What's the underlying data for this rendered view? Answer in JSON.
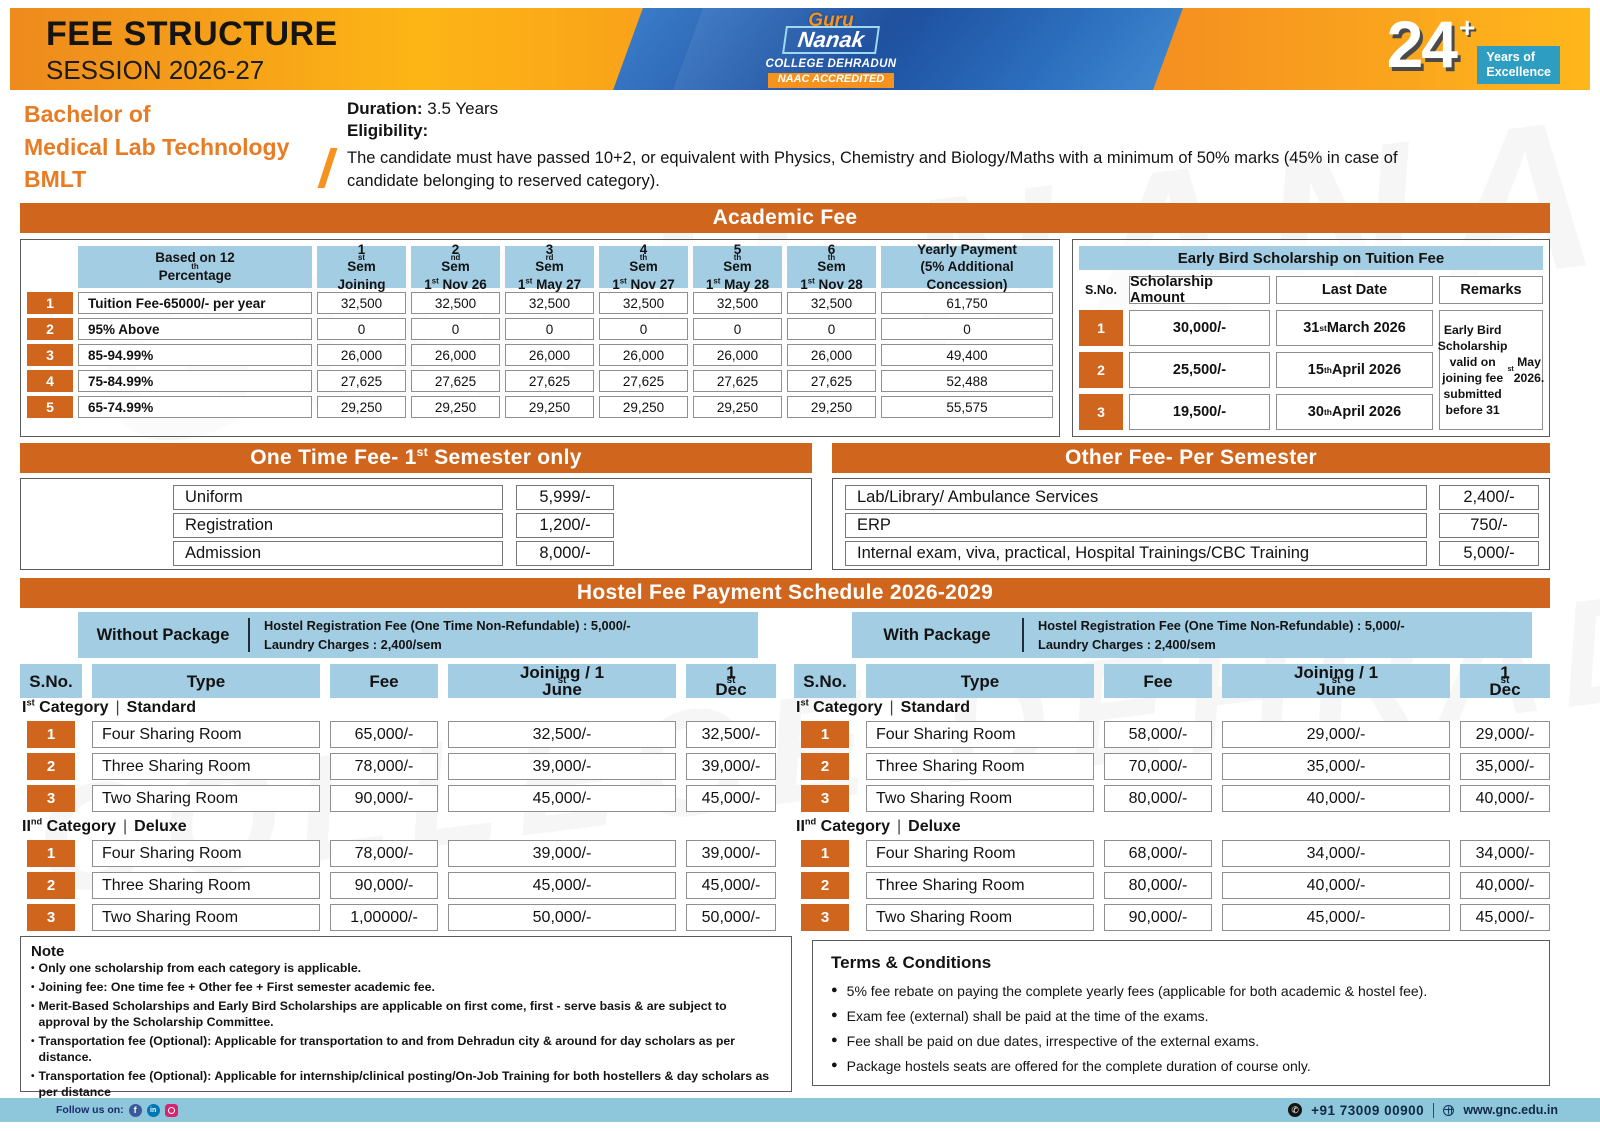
{
  "colors": {
    "orange_band": "#D0661E",
    "banner_orange": "#F6921E",
    "banner_yellow": "#FDB515",
    "banner_blue": "#1D4F9E",
    "light_blue": "#A3CDE3",
    "footer_blue": "#8EC6DC",
    "teal_badge": "#2D9EC1",
    "program_orange": "#E87C25"
  },
  "watermark": {
    "line1": "GURU NANAK",
    "line2": "COLLEGE DEHRADUN"
  },
  "header": {
    "title": "FEE STRUCTURE",
    "session": "SESSION 2026-27",
    "logo": {
      "guru": "Guru",
      "nanak": "Nanak",
      "college": "COLLEGE DEHRADUN",
      "naac": "NAAC ACCREDITED"
    },
    "years_number": "24",
    "years_plus": "+",
    "years_line1": "Years of",
    "years_line2": "Excellence"
  },
  "program": {
    "name_line1": "Bachelor of",
    "name_line2": "Medical Lab Technology",
    "name_line3": "BMLT",
    "duration_label": "Duration:",
    "duration_value": "3.5 Years",
    "eligibility_label": "Eligibility:",
    "eligibility_text": "The candidate must have passed 10+2, or equivalent with Physics, Chemistry and Biology/Maths with a minimum of 50% marks (45% in case of candidate belonging to reserved category)."
  },
  "academic_fee": {
    "section_title": "Academic Fee",
    "columns": [
      {
        "t": "Based on 12th Percentage",
        "b": ""
      },
      {
        "t": "1st Sem",
        "b": "Joining"
      },
      {
        "t": "2nd Sem",
        "b": "1st Nov 26"
      },
      {
        "t": "3rd Sem",
        "b": "1st May 27"
      },
      {
        "t": "4th Sem",
        "b": "1st Nov 27"
      },
      {
        "t": "5th Sem",
        "b": "1st May 28"
      },
      {
        "t": "6th Sem",
        "b": "1st Nov 28"
      },
      {
        "t": "Yearly Payment",
        "b": "(5% Additional Concession)"
      }
    ],
    "rows": [
      {
        "num": "1",
        "label": "Tuition Fee-65000/- per year",
        "values": [
          "32,500",
          "32,500",
          "32,500",
          "32,500",
          "32,500",
          "32,500"
        ],
        "yearly": "61,750"
      },
      {
        "num": "2",
        "label": "95% Above",
        "values": [
          "0",
          "0",
          "0",
          "0",
          "0",
          "0"
        ],
        "yearly": "0"
      },
      {
        "num": "3",
        "label": "85-94.99%",
        "values": [
          "26,000",
          "26,000",
          "26,000",
          "26,000",
          "26,000",
          "26,000"
        ],
        "yearly": "49,400"
      },
      {
        "num": "4",
        "label": "75-84.99%",
        "values": [
          "27,625",
          "27,625",
          "27,625",
          "27,625",
          "27,625",
          "27,625"
        ],
        "yearly": "52,488"
      },
      {
        "num": "5",
        "label": "65-74.99%",
        "values": [
          "29,250",
          "29,250",
          "29,250",
          "29,250",
          "29,250",
          "29,250"
        ],
        "yearly": "55,575"
      }
    ]
  },
  "early_bird": {
    "title": "Early Bird Scholarship on Tuition Fee",
    "columns": [
      "S.No.",
      "Scholarship Amount",
      "Last Date",
      "Remarks"
    ],
    "rows": [
      {
        "num": "1",
        "amount": "30,000/-",
        "date": "31st March 2026"
      },
      {
        "num": "2",
        "amount": "25,500/-",
        "date": "15th April 2026"
      },
      {
        "num": "3",
        "amount": "19,500/-",
        "date": "30th April 2026"
      }
    ],
    "remarks": "Early Bird Scholarship valid on joining fee submitted before 31st May 2026."
  },
  "one_time_fee": {
    "title": "One Time Fee- 1st Semester only",
    "items": [
      {
        "label": "Uniform",
        "value": "5,999/-"
      },
      {
        "label": "Registration",
        "value": "1,200/-"
      },
      {
        "label": "Admission",
        "value": "8,000/-"
      }
    ]
  },
  "other_fee": {
    "title": "Other Fee- Per Semester",
    "items": [
      {
        "label": "Lab/Library/ Ambulance Services",
        "value": "2,400/-"
      },
      {
        "label": "ERP",
        "value": "750/-"
      },
      {
        "label": "Internal exam, viva, practical, Hospital Trainings/CBC Training",
        "value": "5,000/-"
      }
    ]
  },
  "hostel": {
    "section_title": "Hostel Fee Payment Schedule 2026-2029",
    "columns": [
      "S.No.",
      "Type",
      "Fee",
      "Joining / 1st June",
      "1st Dec"
    ],
    "tables": [
      {
        "package_label": "Without Package",
        "reg_line1": "Hostel Registration Fee (One Time  Non-Refundable) : 5,000/-",
        "reg_line2": "Laundry Charges : 2,400/sem",
        "categories": [
          {
            "label": "Ist Category",
            "sub": "Standard",
            "rows": [
              {
                "num": "1",
                "type": "Four Sharing Room",
                "fee": "65,000/-",
                "joining": "32,500/-",
                "dec": "32,500/-"
              },
              {
                "num": "2",
                "type": "Three Sharing Room",
                "fee": "78,000/-",
                "joining": "39,000/-",
                "dec": "39,000/-"
              },
              {
                "num": "3",
                "type": "Two Sharing Room",
                "fee": "90,000/-",
                "joining": "45,000/-",
                "dec": "45,000/-"
              }
            ]
          },
          {
            "label": "IInd Category",
            "sub": "Deluxe",
            "rows": [
              {
                "num": "1",
                "type": "Four Sharing Room",
                "fee": "78,000/-",
                "joining": "39,000/-",
                "dec": "39,000/-"
              },
              {
                "num": "2",
                "type": "Three Sharing Room",
                "fee": "90,000/-",
                "joining": "45,000/-",
                "dec": "45,000/-"
              },
              {
                "num": "3",
                "type": "Two Sharing Room",
                "fee": "1,00000/-",
                "joining": "50,000/-",
                "dec": "50,000/-"
              }
            ]
          }
        ]
      },
      {
        "package_label": "With Package",
        "reg_line1": "Hostel Registration Fee (One Time  Non-Refundable) : 5,000/-",
        "reg_line2": "Laundry Charges : 2,400/sem",
        "categories": [
          {
            "label": "Ist Category",
            "sub": "Standard",
            "rows": [
              {
                "num": "1",
                "type": "Four Sharing Room",
                "fee": "58,000/-",
                "joining": "29,000/-",
                "dec": "29,000/-"
              },
              {
                "num": "2",
                "type": "Three Sharing Room",
                "fee": "70,000/-",
                "joining": "35,000/-",
                "dec": "35,000/-"
              },
              {
                "num": "3",
                "type": "Two Sharing Room",
                "fee": "80,000/-",
                "joining": "40,000/-",
                "dec": "40,000/-"
              }
            ]
          },
          {
            "label": "IInd Category",
            "sub": "Deluxe",
            "rows": [
              {
                "num": "1",
                "type": "Four Sharing Room",
                "fee": "68,000/-",
                "joining": "34,000/-",
                "dec": "34,000/-"
              },
              {
                "num": "2",
                "type": "Three Sharing Room",
                "fee": "80,000/-",
                "joining": "40,000/-",
                "dec": "40,000/-"
              },
              {
                "num": "3",
                "type": "Two Sharing Room",
                "fee": "90,000/-",
                "joining": "45,000/-",
                "dec": "45,000/-"
              }
            ]
          }
        ]
      }
    ]
  },
  "note": {
    "title": "Note",
    "items": [
      "Only one scholarship from each category is applicable.",
      "Joining fee: One time fee + Other fee + First semester academic fee.",
      "Merit-Based Scholarships and Early Bird Scholarships are applicable on first come, first - serve basis & are subject to approval by the Scholarship Committee.",
      "Transportation fee (Optional): Applicable for transportation to and from Dehradun city & around for day scholars as per distance.",
      "Transportation fee (Optional): Applicable for internship/clinical posting/On-Job Training for both hostellers & day scholars as per distance"
    ]
  },
  "terms": {
    "title": "Terms & Conditions",
    "items": [
      "5% fee rebate on paying the complete yearly fees (applicable for both academic & hostel fee).",
      "Exam fee (external) shall be paid at the time of the exams.",
      "Fee shall be paid on due dates, irrespective of the external exams.",
      "Package hostels seats are offered for the complete duration of course only."
    ]
  },
  "footer": {
    "follow_label": "Follow us on:",
    "icons": {
      "facebook": "f",
      "linkedin": "in",
      "instagram": "instagram-camera",
      "phone_glyph": "✆"
    },
    "phone": "+91  73009 00900",
    "website": "www.gnc.edu.in"
  }
}
